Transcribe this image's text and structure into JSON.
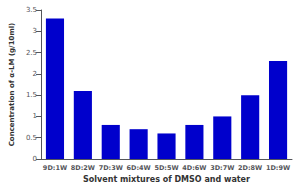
{
  "chart_data": {
    "type": "bar",
    "categories": [
      "9D:1W",
      "8D:2W",
      "7D:3W",
      "6D:4W",
      "5D:5W",
      "4D:6W",
      "3D:7W",
      "2D:8W",
      "1D:9W"
    ],
    "values": [
      3.3,
      1.6,
      0.8,
      0.7,
      0.6,
      0.8,
      1.0,
      1.5,
      2.3
    ],
    "color": "#0000CC",
    "xlabel": "Solvent mixtures of DMSO and water",
    "ylabel": "Concentration of α-LM (g/10ml)",
    "ylim": [
      0,
      3.5
    ],
    "yticks": [
      0,
      0.5,
      1,
      1.5,
      2,
      2.5,
      3,
      3.5
    ],
    "grid": false
  }
}
